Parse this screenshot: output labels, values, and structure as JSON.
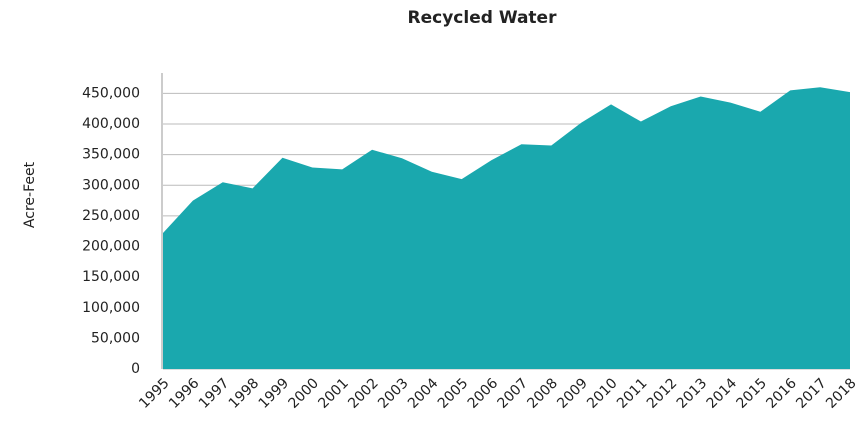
{
  "chart_data": {
    "type": "area",
    "title": "Recycled Water",
    "y_label": "Acre-Feet",
    "categories": [
      "1995",
      "1996",
      "1997",
      "1998",
      "1999",
      "2000",
      "2001",
      "2002",
      "2003",
      "2004",
      "2005",
      "2006",
      "2007",
      "2008",
      "2009",
      "2010",
      "2011",
      "2012",
      "2013",
      "2014",
      "2015",
      "2016",
      "2017",
      "2018"
    ],
    "values": [
      222000,
      275000,
      305000,
      295000,
      345000,
      329000,
      326000,
      358000,
      344000,
      322000,
      310000,
      341000,
      367000,
      365000,
      402000,
      432000,
      404000,
      429000,
      445000,
      435000,
      420000,
      455000,
      460000,
      452000
    ],
    "color": "#1aa8ae",
    "ylim": [
      0,
      480000
    ],
    "yticks": [
      0,
      {
        "value": 50000,
        "label": "50,000"
      },
      {
        "value": 100000,
        "label": "100,000"
      },
      {
        "value": 150000,
        "label": "150,000"
      },
      {
        "value": 200000,
        "label": "200,000"
      },
      {
        "value": 250000,
        "label": "250,000"
      },
      {
        "value": 300000,
        "label": "300,000"
      },
      {
        "value": 350000,
        "label": "350,000"
      },
      {
        "value": 400000,
        "label": "400,000"
      },
      {
        "value": 450000,
        "label": "450,000"
      }
    ],
    "grid": true
  }
}
